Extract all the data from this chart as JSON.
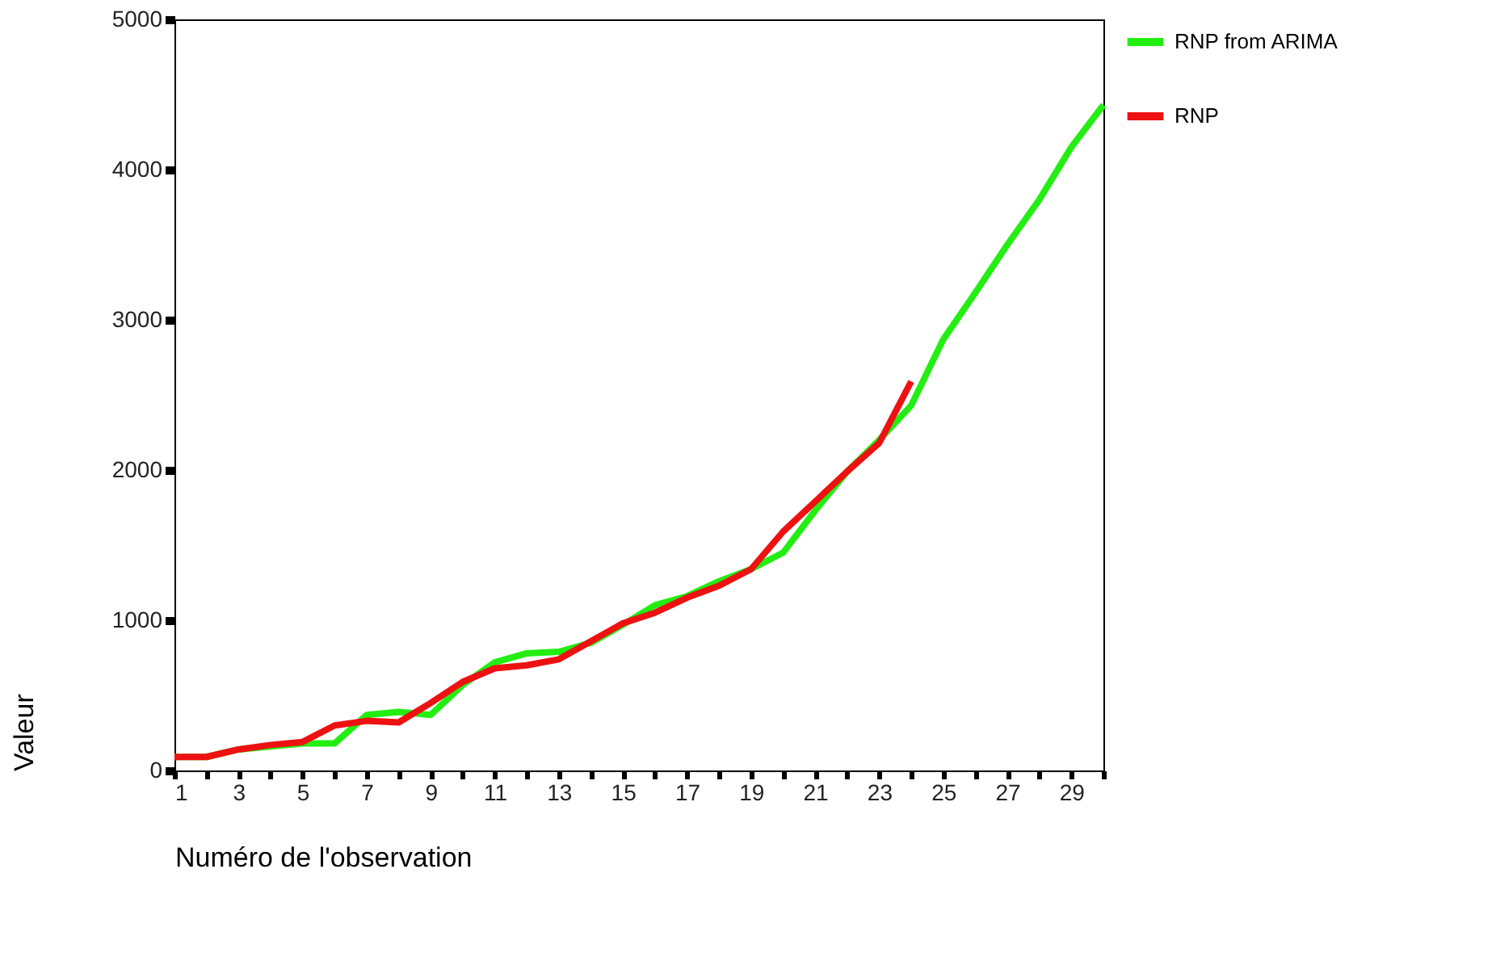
{
  "chart_data": {
    "type": "line",
    "xlabel": "Numéro de l'observation",
    "ylabel": "Valeur",
    "x": [
      1,
      2,
      3,
      4,
      5,
      6,
      7,
      8,
      9,
      10,
      11,
      12,
      13,
      14,
      15,
      16,
      17,
      18,
      19,
      20,
      21,
      22,
      23,
      24,
      25,
      26,
      27,
      28,
      29,
      30
    ],
    "xlim": [
      1,
      30
    ],
    "xticks": [
      1,
      {
        "value": 2,
        "label": null
      },
      3,
      {
        "value": 4,
        "label": null
      },
      5,
      {
        "value": 6,
        "label": null
      },
      7,
      {
        "value": 8,
        "label": null
      },
      9,
      {
        "value": 10,
        "label": null
      },
      11,
      {
        "value": 12,
        "label": null
      },
      13,
      {
        "value": 14,
        "label": null
      },
      15,
      {
        "value": 16,
        "label": null
      },
      17,
      {
        "value": 18,
        "label": null
      },
      19,
      {
        "value": 20,
        "label": null
      },
      21,
      {
        "value": 22,
        "label": null
      },
      23,
      {
        "value": 24,
        "label": null
      },
      25,
      {
        "value": 26,
        "label": null
      },
      27,
      {
        "value": 28,
        "label": null
      },
      29,
      {
        "value": 30,
        "label": null
      }
    ],
    "ylim": [
      0,
      5000
    ],
    "yticks": [
      0,
      1000,
      2000,
      3000,
      4000,
      5000
    ],
    "grid": false,
    "legend": "right",
    "marker": "none",
    "line_style": "solid",
    "series": [
      {
        "name": "RNP from ARIMA",
        "color": "#22ee11",
        "values": [
          90,
          90,
          140,
          160,
          180,
          180,
          370,
          390,
          370,
          570,
          720,
          780,
          790,
          850,
          970,
          1100,
          1160,
          1260,
          1340,
          1450,
          1730,
          1990,
          2200,
          2430,
          2870,
          3180,
          3500,
          3800,
          4150,
          4430
        ]
      },
      {
        "name": "RNP",
        "color": "#ee1111",
        "values": [
          90,
          90,
          140,
          170,
          190,
          300,
          330,
          320,
          450,
          590,
          680,
          700,
          740,
          860,
          980,
          1050,
          1150,
          1230,
          1340,
          1590,
          1790,
          1990,
          2180,
          2590,
          null,
          null,
          null,
          null,
          null,
          null
        ]
      }
    ]
  }
}
